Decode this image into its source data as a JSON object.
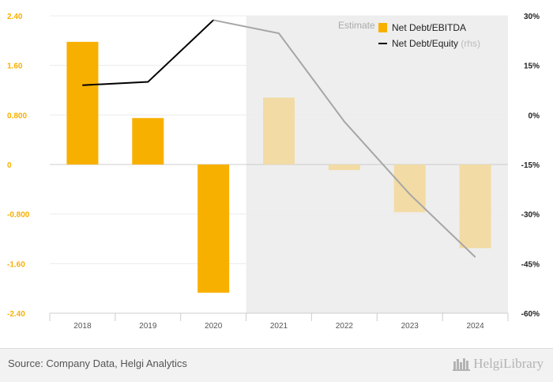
{
  "chart_data": {
    "type": "bar",
    "categories": [
      "2018",
      "2019",
      "2020",
      "2021",
      "2022",
      "2023",
      "2024"
    ],
    "estimate_start_index": 3,
    "estimate_label": "Estimate",
    "series": [
      {
        "name": "Net Debt/EBITDA",
        "kind": "bar",
        "axis": "left",
        "color": "#f8b000",
        "estimate_color": "#f3dba5",
        "values": [
          1.98,
          0.75,
          -2.07,
          1.08,
          -0.09,
          -0.77,
          -1.35
        ]
      },
      {
        "name": "Net Debt/Equity",
        "name_suffix": "(rhs)",
        "kind": "line",
        "axis": "right",
        "color": "#000000",
        "estimate_color": "#a6a6a6",
        "values": [
          9,
          10,
          28.7,
          24.7,
          -2,
          -24,
          -43
        ]
      }
    ],
    "left_axis": {
      "min": -2.4,
      "max": 2.4,
      "ticks": [
        2.4,
        1.6,
        0.8,
        0,
        -0.8,
        -1.6,
        -2.4
      ],
      "tick_labels": [
        "2.40",
        "1.60",
        "0.800",
        "0",
        "-0.800",
        "-1.60",
        "-2.40"
      ],
      "label_color": "#f8b000"
    },
    "right_axis": {
      "min": -60,
      "max": 30,
      "tick_labels": [
        "30%",
        "15%",
        "0%",
        "-15%",
        "-30%",
        "-45%",
        "-60%"
      ]
    },
    "legend_position": "top-right",
    "grid": true
  },
  "footer": {
    "source": "Source: Company Data, Helgi Analytics",
    "brand": "HelgiLibrary",
    "brand_icon": "library-books-icon"
  }
}
